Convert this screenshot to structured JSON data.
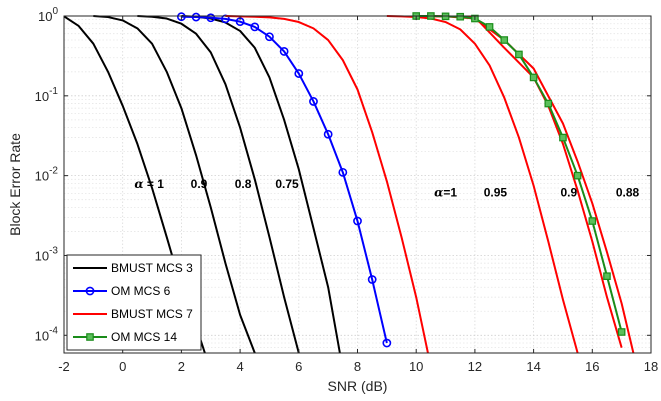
{
  "chart_data": {
    "type": "line",
    "xlabel": "SNR (dB)",
    "ylabel": "Block Error Rate",
    "xlim": [
      -2,
      18
    ],
    "ylim": [
      6e-05,
      1
    ],
    "yscale": "log",
    "grid": true,
    "legend_position": "bottom-left",
    "xticks": [
      -2,
      0,
      2,
      4,
      6,
      8,
      10,
      12,
      14,
      16,
      18
    ],
    "xtick_labels": [
      "-2",
      "0",
      "2",
      "4",
      "6",
      "8",
      "10",
      "12",
      "14",
      "16",
      "18"
    ],
    "yticks": [
      1,
      0.1,
      0.01,
      0.001,
      0.0001
    ],
    "ytick_labels": [
      {
        "base": "10",
        "exp": "0"
      },
      {
        "base": "10",
        "exp": "-1"
      },
      {
        "base": "10",
        "exp": "-2"
      },
      {
        "base": "10",
        "exp": "-3"
      },
      {
        "base": "10",
        "exp": "-4"
      }
    ],
    "legend": [
      "BMUST MCS 3",
      "OM MCS 6",
      "BMUST MCS 7",
      "OM MCS 14"
    ],
    "series": [
      {
        "name": "BMUST MCS 3",
        "color": "#000000",
        "marker": "none",
        "group": "alpha=1",
        "points": [
          [
            -2.0,
            0.99
          ],
          [
            -1.5,
            0.75
          ],
          [
            -1.0,
            0.45
          ],
          [
            -0.5,
            0.2
          ],
          [
            0.0,
            0.075
          ],
          [
            0.5,
            0.025
          ],
          [
            1.0,
            0.007
          ],
          [
            1.5,
            0.0017
          ],
          [
            2.0,
            0.0004
          ],
          [
            2.5,
            0.00013
          ],
          [
            2.8,
            6e-05
          ]
        ]
      },
      {
        "name": "BMUST MCS 3",
        "color": "#000000",
        "marker": "none",
        "group": "alpha=0.9",
        "points": [
          [
            -1.0,
            1.0
          ],
          [
            -0.5,
            0.97
          ],
          [
            0.0,
            0.88
          ],
          [
            0.5,
            0.7
          ],
          [
            1.0,
            0.45
          ],
          [
            1.5,
            0.2
          ],
          [
            2.0,
            0.07
          ],
          [
            2.5,
            0.018
          ],
          [
            3.0,
            0.004
          ],
          [
            3.5,
            0.0008
          ],
          [
            4.0,
            0.00018
          ],
          [
            4.5,
            6e-05
          ]
        ]
      },
      {
        "name": "BMUST MCS 3",
        "color": "#000000",
        "marker": "none",
        "group": "alpha=0.8",
        "points": [
          [
            0.5,
            1.0
          ],
          [
            1.0,
            0.98
          ],
          [
            1.5,
            0.93
          ],
          [
            2.0,
            0.8
          ],
          [
            2.5,
            0.6
          ],
          [
            3.0,
            0.35
          ],
          [
            3.5,
            0.14
          ],
          [
            4.0,
            0.04
          ],
          [
            4.5,
            0.009
          ],
          [
            5.0,
            0.0017
          ],
          [
            5.5,
            0.0003
          ],
          [
            6.0,
            6e-05
          ]
        ]
      },
      {
        "name": "BMUST MCS 3",
        "color": "#000000",
        "marker": "none",
        "group": "alpha=0.75",
        "points": [
          [
            2.0,
            1.0
          ],
          [
            2.5,
            0.98
          ],
          [
            3.0,
            0.93
          ],
          [
            3.5,
            0.83
          ],
          [
            4.0,
            0.65
          ],
          [
            4.5,
            0.4
          ],
          [
            5.0,
            0.17
          ],
          [
            5.5,
            0.05
          ],
          [
            6.0,
            0.012
          ],
          [
            6.5,
            0.0022
          ],
          [
            7.0,
            0.0004
          ],
          [
            7.4,
            6e-05
          ]
        ]
      },
      {
        "name": "OM MCS 6",
        "color": "#0000ff",
        "marker": "circle",
        "points": [
          [
            2.0,
            0.98
          ],
          [
            2.5,
            0.97
          ],
          [
            3.0,
            0.95
          ],
          [
            3.5,
            0.92
          ],
          [
            4.0,
            0.85
          ],
          [
            4.5,
            0.73
          ],
          [
            5.0,
            0.55
          ],
          [
            5.5,
            0.36
          ],
          [
            6.0,
            0.19
          ],
          [
            6.5,
            0.085
          ],
          [
            7.0,
            0.033
          ],
          [
            7.5,
            0.011
          ],
          [
            8.0,
            0.0027
          ],
          [
            8.5,
            0.0005
          ],
          [
            9.0,
            8e-05
          ]
        ]
      },
      {
        "name": "BMUST MCS 7",
        "color": "#ff0000",
        "marker": "none",
        "group": "alpha=1",
        "points": [
          [
            3.5,
            1.0
          ],
          [
            4.0,
            0.99
          ],
          [
            4.5,
            0.98
          ],
          [
            5.0,
            0.96
          ],
          [
            5.5,
            0.92
          ],
          [
            6.0,
            0.84
          ],
          [
            6.5,
            0.7
          ],
          [
            7.0,
            0.5
          ],
          [
            7.5,
            0.28
          ],
          [
            8.0,
            0.12
          ],
          [
            8.5,
            0.035
          ],
          [
            9.0,
            0.0085
          ],
          [
            9.5,
            0.0017
          ],
          [
            10.0,
            0.0003
          ],
          [
            10.4,
            6e-05
          ]
        ]
      },
      {
        "name": "BMUST MCS 7",
        "color": "#ff0000",
        "marker": "none",
        "group": "alpha=0.95",
        "points": [
          [
            9.0,
            1.0
          ],
          [
            9.5,
            0.99
          ],
          [
            10.0,
            0.97
          ],
          [
            10.5,
            0.93
          ],
          [
            11.0,
            0.84
          ],
          [
            11.5,
            0.68
          ],
          [
            12.0,
            0.45
          ],
          [
            12.5,
            0.24
          ],
          [
            13.0,
            0.095
          ],
          [
            13.5,
            0.03
          ],
          [
            14.0,
            0.0075
          ],
          [
            14.5,
            0.0015
          ],
          [
            15.0,
            0.00028
          ],
          [
            15.5,
            6e-05
          ]
        ]
      },
      {
        "name": "BMUST MCS 7",
        "color": "#ff0000",
        "marker": "none",
        "group": "alpha=0.9",
        "points": [
          [
            10.0,
            1.0
          ],
          [
            11.0,
            0.99
          ],
          [
            12.0,
            0.97
          ],
          [
            13.0,
            0.4
          ],
          [
            14.0,
            0.17
          ],
          [
            14.5,
            0.075
          ],
          [
            15.0,
            0.025
          ],
          [
            15.5,
            0.0065
          ],
          [
            16.0,
            0.0015
          ],
          [
            16.5,
            0.0003
          ],
          [
            17.0,
            7e-05
          ]
        ]
      },
      {
        "name": "BMUST MCS 7",
        "color": "#ff0000",
        "marker": "none",
        "group": "alpha=0.88",
        "points": [
          [
            10.0,
            1.0
          ],
          [
            11.0,
            0.99
          ],
          [
            12.0,
            0.93
          ],
          [
            13.0,
            0.5
          ],
          [
            14.0,
            0.22
          ],
          [
            15.0,
            0.045
          ],
          [
            15.5,
            0.015
          ],
          [
            16.0,
            0.0045
          ],
          [
            16.5,
            0.0011
          ],
          [
            17.0,
            0.00025
          ],
          [
            17.4,
            6e-05
          ]
        ]
      },
      {
        "name": "OM MCS 14",
        "color": "#1a8c1a",
        "marker": "square",
        "points": [
          [
            10.0,
            1.0
          ],
          [
            10.5,
            1.0
          ],
          [
            11.0,
            0.99
          ],
          [
            11.5,
            0.98
          ],
          [
            12.0,
            0.93
          ],
          [
            12.5,
            0.73
          ],
          [
            13.0,
            0.5
          ],
          [
            13.5,
            0.33
          ],
          [
            14.0,
            0.17
          ],
          [
            14.5,
            0.08
          ],
          [
            15.0,
            0.03
          ],
          [
            15.5,
            0.01
          ],
          [
            16.0,
            0.0027
          ],
          [
            16.5,
            0.00055
          ],
          [
            17.0,
            0.00011
          ]
        ]
      }
    ],
    "annotations": [
      {
        "text_prefix": "α",
        "text": " = 1",
        "x": 0.9,
        "y": 0.007
      },
      {
        "text": "0.9",
        "x": 2.6,
        "y": 0.007
      },
      {
        "text": "0.8",
        "x": 4.1,
        "y": 0.007
      },
      {
        "text": "0.75",
        "x": 5.6,
        "y": 0.007
      },
      {
        "text_prefix": "α",
        "text": "=1",
        "x": 11.0,
        "y": 0.0055
      },
      {
        "text": "0.95",
        "x": 12.7,
        "y": 0.0055
      },
      {
        "text": "0.9",
        "x": 15.2,
        "y": 0.0055
      },
      {
        "text": "0.88",
        "x": 17.2,
        "y": 0.0055
      }
    ]
  }
}
